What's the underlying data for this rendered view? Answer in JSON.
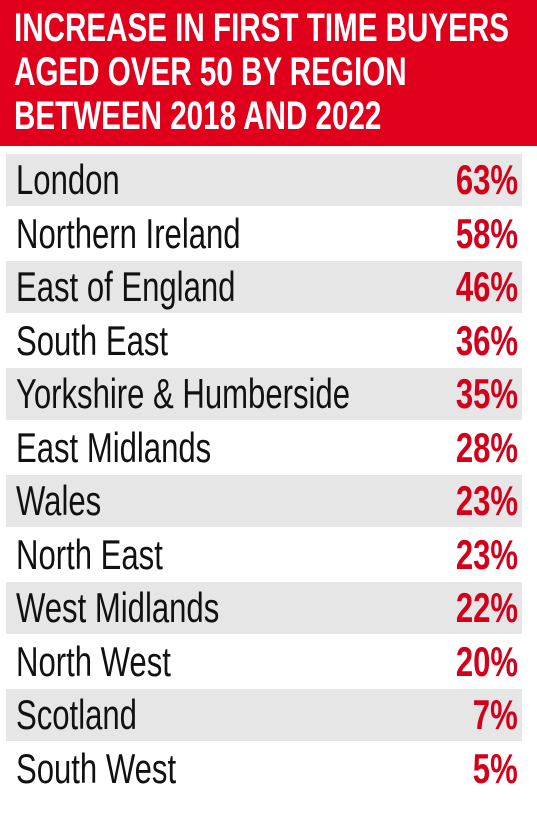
{
  "header": {
    "title_lines": [
      "INCREASE IN FIRST TIME BUYERS",
      "AGED OVER 50 BY REGION",
      "BETWEEN 2018 AND 2022"
    ]
  },
  "table": {
    "rows": [
      [
        "London",
        "63%"
      ],
      [
        "Northern Ireland",
        "58%"
      ],
      [
        "East of England",
        "46%"
      ],
      [
        "South East",
        "36%"
      ],
      [
        "Yorkshire & Humberside",
        "35%"
      ],
      [
        "East Midlands",
        "28%"
      ],
      [
        "Wales",
        "23%"
      ],
      [
        "North East",
        "23%"
      ],
      [
        "West Midlands",
        "22%"
      ],
      [
        "North West",
        "20%"
      ],
      [
        "Scotland",
        "7%"
      ],
      [
        "South West",
        "5%"
      ]
    ]
  }
}
